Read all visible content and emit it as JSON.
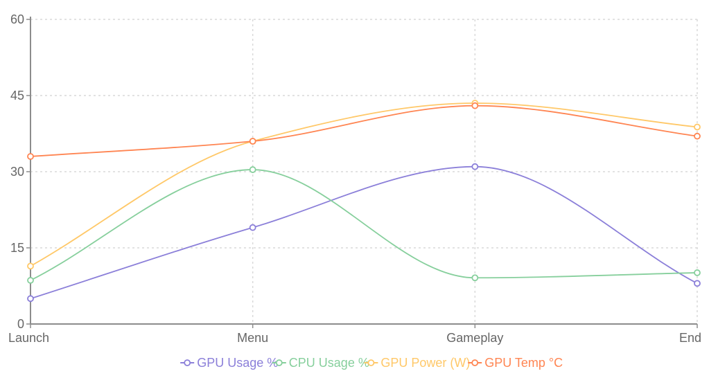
{
  "chart_data": {
    "type": "line",
    "categories": [
      "Launch",
      "Menu",
      "Gameplay",
      "End"
    ],
    "ylim": [
      0,
      60
    ],
    "yticks": [
      0,
      15,
      30,
      45,
      60
    ],
    "grid": true,
    "legend_position": "bottom",
    "series": [
      {
        "name": "GPU Usage %",
        "color": "#8b7fd9",
        "values": [
          5,
          19,
          31,
          8
        ]
      },
      {
        "name": "CPU Usage %",
        "color": "#86cf9c",
        "values": [
          8.6,
          30.4,
          9.1,
          10.1
        ]
      },
      {
        "name": "GPU Power (W)",
        "color": "#ffc868",
        "values": [
          11.4,
          36,
          43.5,
          38.8
        ]
      },
      {
        "name": "GPU Temp °C",
        "color": "#ff8552",
        "values": [
          33,
          36,
          43,
          37
        ]
      }
    ]
  }
}
